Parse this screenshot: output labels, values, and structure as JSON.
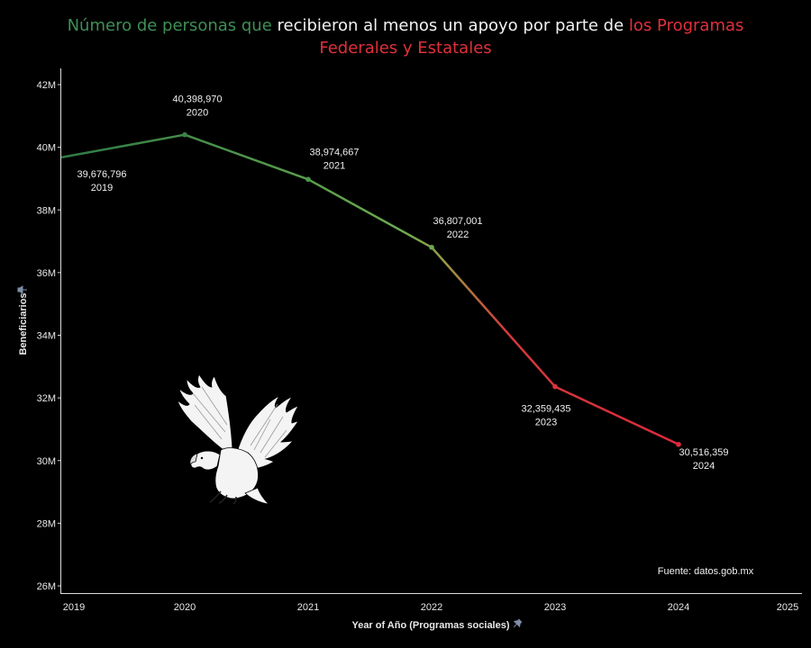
{
  "title": {
    "part_green": "Número de personas que",
    "part_white": "recibieron al menos un apoyo por parte de",
    "part_red": "los Programas Federales y Estatales"
  },
  "source_note": "Fuente: datos.gob.mx",
  "colors": {
    "green": "#3f8f55",
    "red": "#e0303b",
    "line_start": "#2f7a45",
    "line_mid": "#6aab4f",
    "line_end": "#d92c3c"
  },
  "chart_data": {
    "type": "line",
    "title": "Número de personas que recibieron al menos un apoyo por parte de los Programas Federales y Estatales",
    "xlabel": "Year of Año (Programas sociales)",
    "ylabel": "Beneficiarios",
    "x_ticks": [
      "2019",
      "2020",
      "2021",
      "2022",
      "2023",
      "2024",
      "2025"
    ],
    "y_ticks": [
      "26M",
      "28M",
      "30M",
      "32M",
      "34M",
      "36M",
      "38M",
      "40M",
      "42M"
    ],
    "xlim": [
      2019,
      2025
    ],
    "ylim": [
      26000000,
      42000000
    ],
    "grid": false,
    "series": [
      {
        "points": [
          {
            "x": 2019,
            "y": 39676796,
            "label_value": "39,676,796",
            "label_year": "2019"
          },
          {
            "x": 2020,
            "y": 40398970,
            "label_value": "40,398,970",
            "label_year": "2020"
          },
          {
            "x": 2021,
            "y": 38974667,
            "label_value": "38,974,667",
            "label_year": "2021"
          },
          {
            "x": 2022,
            "y": 36807001,
            "label_value": "36,807,001",
            "label_year": "2022"
          },
          {
            "x": 2023,
            "y": 32359435,
            "label_value": "32,359,435",
            "label_year": "2023"
          },
          {
            "x": 2024,
            "y": 30516359,
            "label_value": "30,516,359",
            "label_year": "2024"
          }
        ]
      }
    ]
  },
  "icons": {
    "decoration": "eagle-icon",
    "pin": "pin-icon"
  }
}
